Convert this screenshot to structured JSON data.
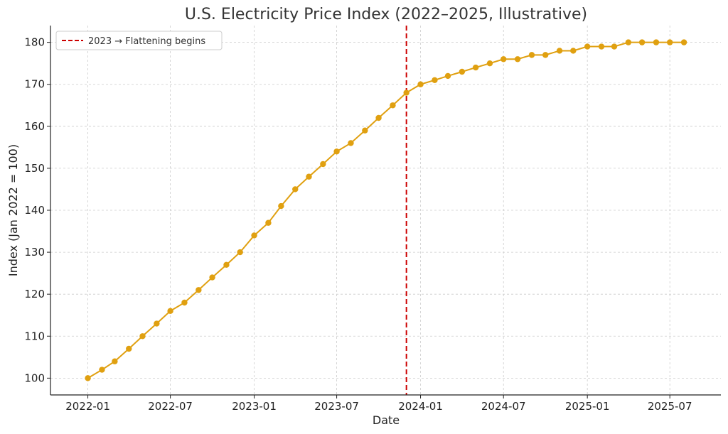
{
  "chart_data": {
    "type": "line",
    "title": "U.S. Electricity Price Index (2022–2025, Illustrative)",
    "xlabel": "Date",
    "ylabel": "Index (Jan 2022 = 100)",
    "x": [
      "2022-01",
      "2022-02",
      "2022-03",
      "2022-04",
      "2022-05",
      "2022-06",
      "2022-07",
      "2022-08",
      "2022-09",
      "2022-10",
      "2022-11",
      "2022-12",
      "2023-01",
      "2023-02",
      "2023-03",
      "2023-04",
      "2023-05",
      "2023-06",
      "2023-07",
      "2023-08",
      "2023-09",
      "2023-10",
      "2023-11",
      "2023-12",
      "2024-01",
      "2024-02",
      "2024-03",
      "2024-04",
      "2024-05",
      "2024-06",
      "2024-07",
      "2024-08",
      "2024-09",
      "2024-10",
      "2024-11",
      "2024-12",
      "2025-01",
      "2025-02",
      "2025-03",
      "2025-04",
      "2025-05",
      "2025-06",
      "2025-07",
      "2025-08"
    ],
    "series": [
      {
        "color": "#e0a010",
        "values": [
          100,
          102,
          104,
          107,
          110,
          113,
          116,
          118,
          121,
          124,
          127,
          130,
          134,
          137,
          141,
          145,
          148,
          151,
          154,
          156,
          159,
          162,
          165,
          168,
          170,
          171,
          172,
          173,
          174,
          175,
          176,
          176,
          177,
          177,
          178,
          178,
          179,
          179,
          179,
          180,
          180,
          180,
          180,
          180
        ]
      }
    ],
    "xticks": [
      "2022-01",
      "2022-07",
      "2023-01",
      "2023-07",
      "2024-01",
      "2024-07",
      "2025-01",
      "2025-07"
    ],
    "yticks": [
      100,
      110,
      120,
      130,
      140,
      150,
      160,
      170,
      180
    ],
    "xlim": [
      "2021-10-11",
      "2025-10-21"
    ],
    "ylim": [
      96,
      184
    ],
    "grid": true,
    "vline": {
      "x": "2023-12",
      "label": "2023 → Flattening begins",
      "color": "#cc0000",
      "style": "dashed"
    },
    "legend_position": "top-left"
  }
}
